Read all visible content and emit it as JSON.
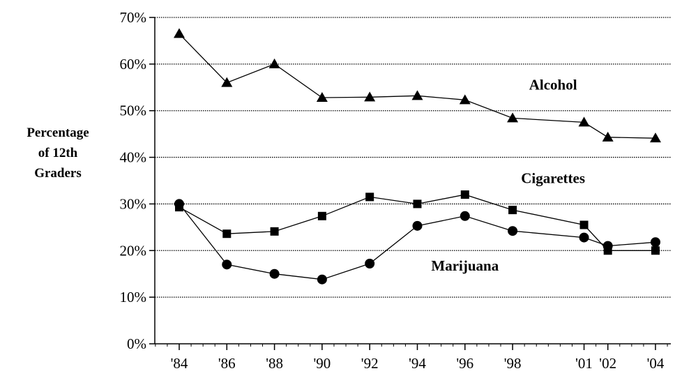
{
  "chart_data": {
    "type": "line",
    "title": "",
    "xlabel": "",
    "ylabel_lines": [
      "Percentage",
      "of 12th",
      "Graders"
    ],
    "x": [
      1984,
      1986,
      1988,
      1990,
      1992,
      1994,
      1996,
      1998,
      2001,
      2002,
      2004
    ],
    "x_tick_labels": [
      "'84",
      "'86",
      "'88",
      "'90",
      "'92",
      "'94",
      "'96",
      "'98",
      "'01",
      "'02",
      "'04"
    ],
    "y_tick_values": [
      0,
      10,
      20,
      30,
      40,
      50,
      60,
      70
    ],
    "y_tick_labels": [
      "0%",
      "10%",
      "20%",
      "30%",
      "40%",
      "50%",
      "60%",
      "70%"
    ],
    "xlim": [
      1984,
      2004
    ],
    "ylim": [
      0,
      70
    ],
    "grid": "horizontal dotted",
    "legend": "none (direct labels)",
    "series": [
      {
        "name": "Alcohol",
        "marker": "triangle",
        "values": [
          66.5,
          56.0,
          60.0,
          52.8,
          52.9,
          53.2,
          52.3,
          48.4,
          47.5,
          44.3,
          44.1
        ],
        "label_x": 1999.7,
        "label_y": 54.5
      },
      {
        "name": "Cigarettes",
        "marker": "square",
        "values": [
          29.3,
          23.6,
          24.1,
          27.4,
          31.5,
          30.0,
          32.0,
          28.7,
          25.5,
          20.0,
          20.0
        ],
        "label_x": 1999.7,
        "label_y": 34.5
      },
      {
        "name": "Marijuana",
        "marker": "circle",
        "values": [
          30.0,
          17.0,
          15.0,
          13.8,
          17.2,
          25.3,
          27.4,
          24.2,
          22.8,
          21.0,
          21.8
        ],
        "label_x": 1996.0,
        "label_y": 15.7
      }
    ]
  }
}
